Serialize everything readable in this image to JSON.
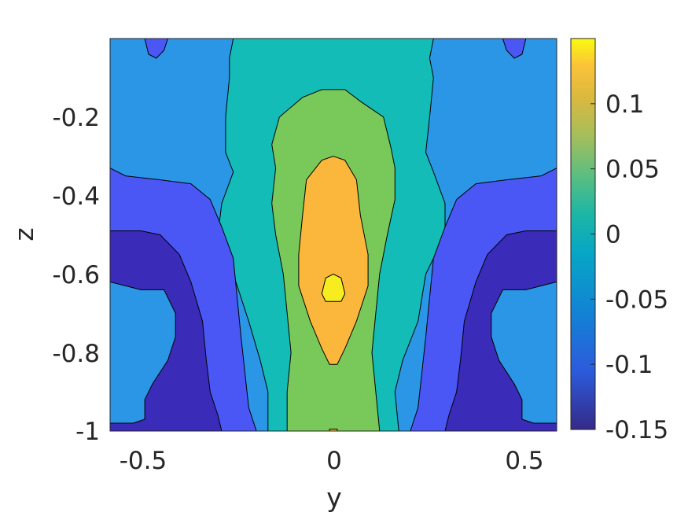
{
  "chart_data": {
    "type": "heatmap",
    "subtype": "filled contour",
    "colormap": "parula",
    "xlabel": "y",
    "ylabel": "z",
    "xlim": [
      -0.58,
      0.58
    ],
    "ylim": [
      -1.0,
      0.0
    ],
    "x_ticks": [
      {
        "value": -0.5,
        "label": "-0.5"
      },
      {
        "value": 0,
        "label": "0"
      },
      {
        "value": 0.5,
        "label": "0.5"
      }
    ],
    "y_ticks": [
      {
        "value": -0.2,
        "label": "-0.2"
      },
      {
        "value": -0.4,
        "label": "-0.4"
      },
      {
        "value": -0.6,
        "label": "-0.6"
      },
      {
        "value": -0.8,
        "label": "-0.8"
      },
      {
        "value": -1,
        "label": "-1"
      }
    ],
    "colorbar": {
      "limits": [
        -0.15,
        0.15
      ],
      "ticks": [
        {
          "value": 0.1,
          "label": "0.1"
        },
        {
          "value": 0.05,
          "label": "0.05"
        },
        {
          "value": 0,
          "label": "0"
        },
        {
          "value": -0.05,
          "label": "-0.05"
        },
        {
          "value": -0.1,
          "label": "-0.1"
        },
        {
          "value": -0.15,
          "label": "-0.15"
        }
      ]
    },
    "levels": [
      {
        "name": "lt-0.1",
        "color": "#3a2bb8"
      },
      {
        "name": "-0.1",
        "color": "#4a57f5"
      },
      {
        "name": "-0.05",
        "color": "#2b95e6"
      },
      {
        "name": "0",
        "color": "#13bcb6"
      },
      {
        "name": "0.05",
        "color": "#79c85a"
      },
      {
        "name": "0.1",
        "color": "#fbb63c"
      },
      {
        "name": "gt-0.1",
        "color": "#f6ec20"
      }
    ],
    "regions": [
      {
        "name": "background-band",
        "level": 2,
        "polygons": [
          [
            [
              -0.58,
              0
            ],
            [
              0.58,
              0
            ],
            [
              0.58,
              -1
            ],
            [
              -0.58,
              -1
            ]
          ]
        ]
      },
      {
        "name": "center-band",
        "level": 3,
        "polygons": [
          [
            [
              -0.26,
              0
            ],
            [
              0.26,
              0
            ],
            [
              0.25,
              -0.05
            ],
            [
              0.26,
              -0.1
            ],
            [
              0.25,
              -0.2
            ],
            [
              0.24,
              -0.29
            ],
            [
              0.26,
              -0.34
            ],
            [
              0.29,
              -0.42
            ],
            [
              0.29,
              -0.5
            ],
            [
              0.24,
              -0.6
            ],
            [
              0.22,
              -0.72
            ],
            [
              0.18,
              -0.82
            ],
            [
              0.16,
              -0.9
            ],
            [
              0.17,
              -1
            ],
            [
              -0.17,
              -1
            ],
            [
              -0.17,
              -0.9
            ],
            [
              -0.19,
              -0.82
            ],
            [
              -0.22,
              -0.72
            ],
            [
              -0.26,
              -0.6
            ],
            [
              -0.3,
              -0.5
            ],
            [
              -0.29,
              -0.42
            ],
            [
              -0.26,
              -0.34
            ],
            [
              -0.28,
              -0.29
            ],
            [
              -0.28,
              -0.2
            ],
            [
              -0.27,
              -0.1
            ],
            [
              -0.27,
              -0.05
            ]
          ]
        ]
      },
      {
        "name": "inner-band",
        "level": 4,
        "polygons": [
          [
            [
              -0.03,
              -0.13
            ],
            [
              0.03,
              -0.13
            ],
            [
              0.07,
              -0.16
            ],
            [
              0.13,
              -0.2
            ],
            [
              0.15,
              -0.28
            ],
            [
              0.16,
              -0.33
            ],
            [
              0.16,
              -0.41
            ],
            [
              0.14,
              -0.5
            ],
            [
              0.12,
              -0.6
            ],
            [
              0.11,
              -0.7
            ],
            [
              0.1,
              -0.8
            ],
            [
              0.11,
              -0.9
            ],
            [
              0.12,
              -1
            ],
            [
              -0.12,
              -1
            ],
            [
              -0.12,
              -0.9
            ],
            [
              -0.11,
              -0.8
            ],
            [
              -0.12,
              -0.7
            ],
            [
              -0.13,
              -0.6
            ],
            [
              -0.15,
              -0.5
            ],
            [
              -0.16,
              -0.42
            ],
            [
              -0.15,
              -0.33
            ],
            [
              -0.16,
              -0.27
            ],
            [
              -0.14,
              -0.2
            ],
            [
              -0.08,
              -0.15
            ]
          ]
        ]
      },
      {
        "name": "core-band",
        "level": 5,
        "polygons": [
          [
            [
              0,
              -0.3
            ],
            [
              0.03,
              -0.31
            ],
            [
              0.06,
              -0.36
            ],
            [
              0.07,
              -0.45
            ],
            [
              0.09,
              -0.55
            ],
            [
              0.09,
              -0.63
            ],
            [
              0.06,
              -0.72
            ],
            [
              0.03,
              -0.79
            ],
            [
              0.01,
              -0.83
            ],
            [
              -0.01,
              -0.83
            ],
            [
              -0.03,
              -0.79
            ],
            [
              -0.06,
              -0.72
            ],
            [
              -0.09,
              -0.63
            ],
            [
              -0.09,
              -0.55
            ],
            [
              -0.08,
              -0.45
            ],
            [
              -0.07,
              -0.36
            ],
            [
              -0.03,
              -0.31
            ]
          ],
          [
            [
              -0.01,
              -0.995
            ],
            [
              0.01,
              -0.995
            ],
            [
              0.01,
              -1
            ],
            [
              -0.01,
              -1
            ]
          ]
        ]
      },
      {
        "name": "peak",
        "level": 6,
        "polygons": [
          [
            [
              0,
              -0.6
            ],
            [
              0.02,
              -0.61
            ],
            [
              0.03,
              -0.65
            ],
            [
              0.02,
              -0.67
            ],
            [
              -0.02,
              -0.67
            ],
            [
              -0.03,
              -0.65
            ],
            [
              -0.02,
              -0.61
            ]
          ]
        ]
      },
      {
        "name": "left-mid-band",
        "level": 1,
        "polygons": [
          [
            [
              -0.58,
              -0.33
            ],
            [
              -0.54,
              -0.35
            ],
            [
              -0.45,
              -0.36
            ],
            [
              -0.37,
              -0.37
            ],
            [
              -0.32,
              -0.41
            ],
            [
              -0.29,
              -0.48
            ],
            [
              -0.26,
              -0.56
            ],
            [
              -0.25,
              -0.66
            ],
            [
              -0.24,
              -0.76
            ],
            [
              -0.23,
              -0.85
            ],
            [
              -0.22,
              -0.94
            ],
            [
              -0.2,
              -1
            ],
            [
              -0.58,
              -1
            ]
          ]
        ]
      },
      {
        "name": "right-mid-band",
        "level": 1,
        "polygons": [
          [
            [
              0.58,
              -0.33
            ],
            [
              0.54,
              -0.35
            ],
            [
              0.45,
              -0.36
            ],
            [
              0.37,
              -0.37
            ],
            [
              0.32,
              -0.41
            ],
            [
              0.29,
              -0.48
            ],
            [
              0.26,
              -0.56
            ],
            [
              0.25,
              -0.66
            ],
            [
              0.24,
              -0.76
            ],
            [
              0.23,
              -0.85
            ],
            [
              0.22,
              -0.94
            ],
            [
              0.2,
              -1
            ],
            [
              0.58,
              -1
            ]
          ]
        ]
      },
      {
        "name": "left-low-band",
        "level": 0,
        "polygons": [
          [
            [
              -0.58,
              -0.49
            ],
            [
              -0.56,
              -0.49
            ],
            [
              -0.5,
              -0.49
            ],
            [
              -0.45,
              -0.5
            ],
            [
              -0.4,
              -0.55
            ],
            [
              -0.37,
              -0.62
            ],
            [
              -0.34,
              -0.72
            ],
            [
              -0.33,
              -0.82
            ],
            [
              -0.32,
              -0.9
            ],
            [
              -0.3,
              -0.96
            ],
            [
              -0.29,
              -1
            ],
            [
              -0.58,
              -1
            ]
          ]
        ]
      },
      {
        "name": "right-low-band",
        "level": 0,
        "polygons": [
          [
            [
              0.58,
              -0.49
            ],
            [
              0.56,
              -0.49
            ],
            [
              0.5,
              -0.49
            ],
            [
              0.45,
              -0.5
            ],
            [
              0.4,
              -0.55
            ],
            [
              0.37,
              -0.62
            ],
            [
              0.34,
              -0.72
            ],
            [
              0.33,
              -0.82
            ],
            [
              0.32,
              -0.9
            ],
            [
              0.3,
              -0.96
            ],
            [
              0.29,
              -1
            ],
            [
              0.58,
              -1
            ]
          ]
        ]
      },
      {
        "name": "left-inner-low",
        "level": 2,
        "polygons": [
          [
            [
              -0.58,
              -0.62
            ],
            [
              -0.5,
              -0.64
            ],
            [
              -0.44,
              -0.64
            ],
            [
              -0.41,
              -0.7
            ],
            [
              -0.41,
              -0.76
            ],
            [
              -0.43,
              -0.82
            ],
            [
              -0.47,
              -0.88
            ],
            [
              -0.49,
              -0.92
            ],
            [
              -0.49,
              -0.97
            ],
            [
              -0.52,
              -0.98
            ],
            [
              -0.58,
              -0.98
            ]
          ]
        ]
      },
      {
        "name": "right-inner-low",
        "level": 2,
        "polygons": [
          [
            [
              0.58,
              -0.62
            ],
            [
              0.5,
              -0.64
            ],
            [
              0.44,
              -0.64
            ],
            [
              0.41,
              -0.7
            ],
            [
              0.41,
              -0.76
            ],
            [
              0.43,
              -0.82
            ],
            [
              0.47,
              -0.88
            ],
            [
              0.49,
              -0.92
            ],
            [
              0.49,
              -0.97
            ],
            [
              0.52,
              -0.98
            ],
            [
              0.58,
              -0.98
            ]
          ]
        ]
      },
      {
        "name": "left-top-corner",
        "level": 1,
        "polygons": [
          [
            [
              -0.49,
              0
            ],
            [
              -0.43,
              0
            ],
            [
              -0.44,
              -0.03
            ],
            [
              -0.46,
              -0.05
            ],
            [
              -0.48,
              -0.04
            ]
          ]
        ]
      },
      {
        "name": "right-top-corner",
        "level": 1,
        "polygons": [
          [
            [
              0.44,
              0
            ],
            [
              0.5,
              0
            ],
            [
              0.49,
              -0.04
            ],
            [
              0.47,
              -0.05
            ],
            [
              0.45,
              -0.03
            ]
          ]
        ]
      }
    ]
  }
}
